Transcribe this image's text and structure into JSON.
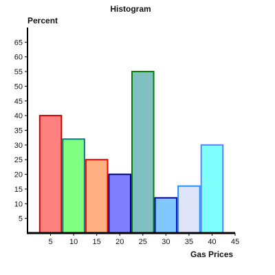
{
  "chart_data": {
    "type": "bar",
    "title": "Histogram",
    "xlabel": "Gas Prices",
    "ylabel": "Percent",
    "x_ticks": [
      5,
      10,
      15,
      20,
      25,
      30,
      35,
      40,
      45
    ],
    "y_ticks": [
      5,
      10,
      15,
      20,
      25,
      30,
      35,
      40,
      45,
      50,
      55,
      60,
      65
    ],
    "xlim": [
      0,
      45
    ],
    "ylim": [
      0,
      70
    ],
    "bins": [
      {
        "from": 2.5,
        "to": 7.5,
        "value": 40,
        "fill": "#ff8080",
        "stroke": "#cc0000"
      },
      {
        "from": 7.5,
        "to": 12.5,
        "value": 32,
        "fill": "#80ff80",
        "stroke": "#008080"
      },
      {
        "from": 12.5,
        "to": 17.5,
        "value": 25,
        "fill": "#ffb080",
        "stroke": "#ff0000"
      },
      {
        "from": 17.5,
        "to": 22.5,
        "value": 20,
        "fill": "#8080ff",
        "stroke": "#000080"
      },
      {
        "from": 22.5,
        "to": 27.5,
        "value": 55,
        "fill": "#80c0c0",
        "stroke": "#008000"
      },
      {
        "from": 27.5,
        "to": 32.5,
        "value": 12,
        "fill": "#80c8ff",
        "stroke": "#0000c0"
      },
      {
        "from": 32.5,
        "to": 37.5,
        "value": 16,
        "fill": "#e0e4f8",
        "stroke": "#2090ff"
      },
      {
        "from": 37.5,
        "to": 42.5,
        "value": 30,
        "fill": "#80ffff",
        "stroke": "#6080ff"
      }
    ],
    "grid": false,
    "legend": "none"
  }
}
